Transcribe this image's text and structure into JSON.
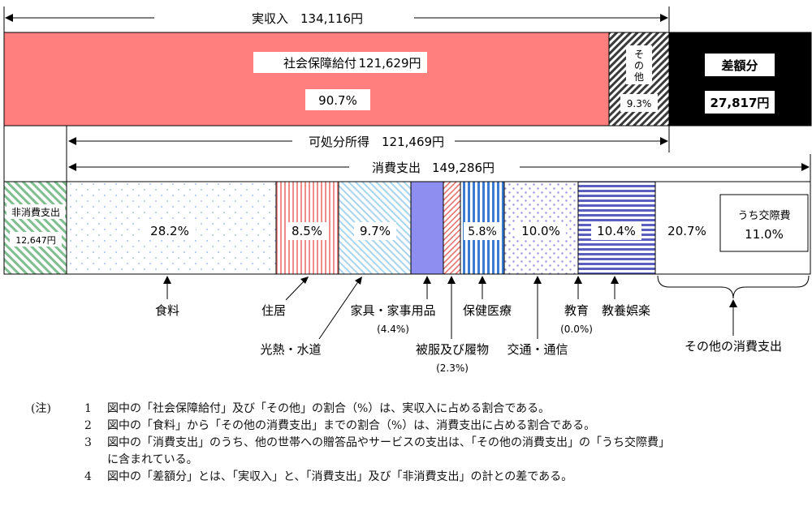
{
  "chart_data": {
    "type": "bar",
    "income_bar": {
      "label": "実収入",
      "total_text": "134,116円",
      "segments": [
        {
          "key": "social",
          "name": "社会保障給付",
          "amount_text": "121,629円",
          "pct_text": "90.7%",
          "share": 90.7
        },
        {
          "key": "other_income",
          "name_lines": [
            "そ",
            "の",
            "他"
          ],
          "pct_text": "9.3%",
          "share": 9.3
        }
      ],
      "deficit": {
        "name": "差額分",
        "amount_text": "27,817円",
        "amount": 27817
      }
    },
    "disposable": {
      "label": "可処分所得",
      "amount_text": "121,469円"
    },
    "spending_bar": {
      "label": "消費支出",
      "total_text": "149,286円",
      "nonconsumption": {
        "name": "非消費支出",
        "amount_text": "12,647円",
        "amount": 12647
      },
      "segments": [
        {
          "key": "food",
          "name": "食料",
          "share": 28.2,
          "pct_text": "28.2%"
        },
        {
          "key": "housing",
          "name": "住居",
          "share": 8.5,
          "pct_text": "8.5%"
        },
        {
          "key": "utilities",
          "name": "光熱・水道",
          "share": 9.7,
          "pct_text": "9.7%"
        },
        {
          "key": "furniture",
          "name": "家具・家事用品",
          "share": 4.4,
          "pct_text": "(4.4%)"
        },
        {
          "key": "clothing",
          "name": "被服及び履物",
          "share": 2.3,
          "pct_text": "(2.3%)"
        },
        {
          "key": "health",
          "name": "保健医療",
          "share": 5.8,
          "pct_text": "5.8%"
        },
        {
          "key": "transport",
          "name": "交通・通信",
          "share": 10.0,
          "pct_text": "10.0%"
        },
        {
          "key": "education",
          "name": "教育",
          "share": 0.0,
          "pct_text": "(0.0%)"
        },
        {
          "key": "recreation",
          "name": "教養娯楽",
          "share": 10.4,
          "pct_text": "10.4%"
        },
        {
          "key": "other_spending",
          "name": "その他の消費支出",
          "share": 20.7,
          "pct_text": "20.7%",
          "sub": {
            "name": "うち交際費",
            "pct_text": "11.0%",
            "share": 11.0
          }
        }
      ]
    }
  },
  "notes": {
    "head": "(注)",
    "items": [
      {
        "num": "1",
        "lines": [
          "図中の「社会保障給付」及び「その他」の割合（%）は、実収入に占める割合である。"
        ]
      },
      {
        "num": "2",
        "lines": [
          "図中の「食料」から「その他の消費支出」までの割合（%）は、消費支出に占める割合である。"
        ]
      },
      {
        "num": "3",
        "lines": [
          "図中の「消費支出」のうち、他の世帯への贈答品やサービスの支出は、「その他の消費支出」の「うち交際費」",
          "に含まれている。"
        ]
      },
      {
        "num": "4",
        "lines": [
          "図中の「差額分」とは、「実収入」と、「消費支出」及び「非消費支出」の計との差である。"
        ]
      }
    ]
  }
}
